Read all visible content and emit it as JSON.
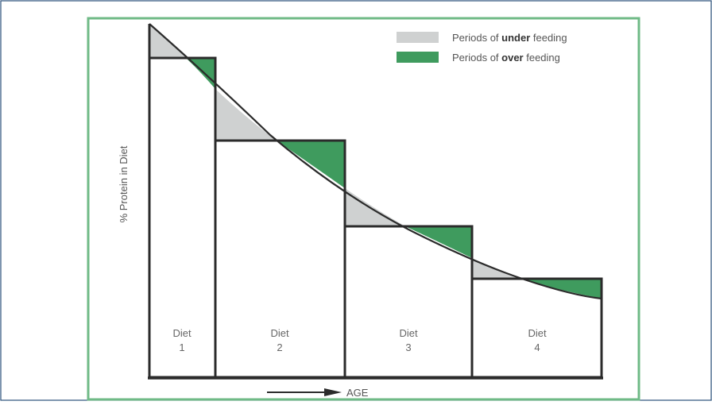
{
  "diagram": {
    "y_axis_label": "% Protein in Diet",
    "x_axis_label": "AGE",
    "legend": {
      "under": {
        "prefix": "Periods of ",
        "bold": "under",
        "suffix": " feeding"
      },
      "over": {
        "prefix": "Periods of ",
        "bold": "over",
        "suffix": " feeding"
      }
    },
    "diets": [
      {
        "name": "Diet",
        "number": "1"
      },
      {
        "name": "Diet",
        "number": "2"
      },
      {
        "name": "Diet",
        "number": "3"
      },
      {
        "name": "Diet",
        "number": "4"
      }
    ],
    "colors": {
      "under_feeding": "#cfd1d1",
      "over_feeding": "#3f9b5e",
      "frame_border": "#6fba86",
      "outer_border": "#2a4f7a",
      "lines": "#2b2b2b"
    }
  }
}
